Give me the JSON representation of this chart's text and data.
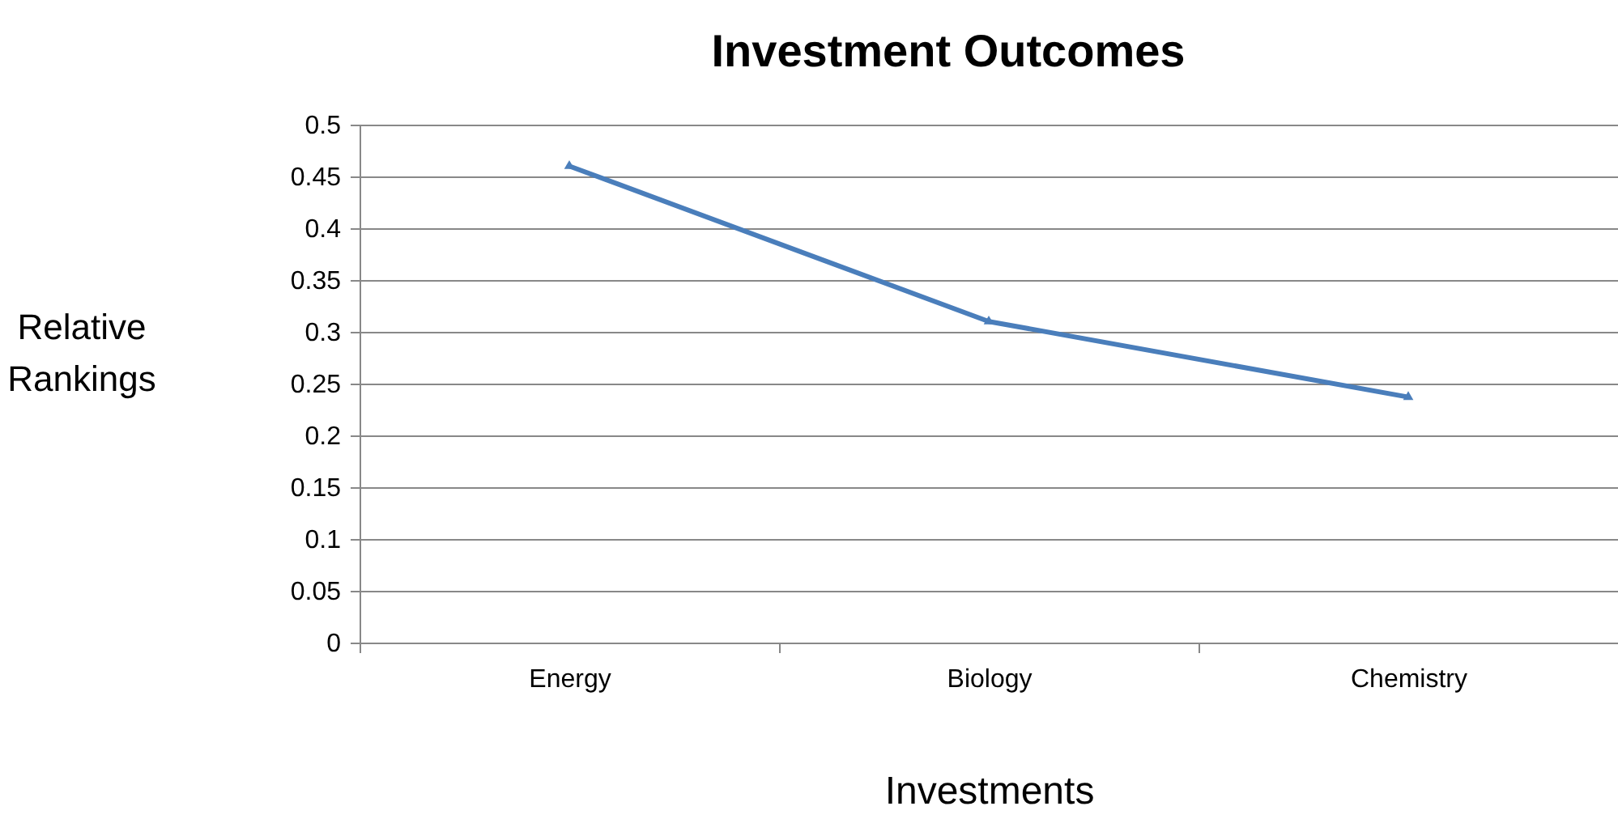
{
  "chart_data": {
    "type": "line",
    "title": "Investment Outcomes",
    "xlabel": "Investments",
    "ylabel": "Relative Rankings",
    "categories": [
      "Energy",
      "Biology",
      "Chemistry"
    ],
    "series": [
      {
        "color": "#4a7ebb",
        "values": [
          0.46,
          0.31,
          0.237
        ]
      }
    ],
    "ylim": [
      0,
      0.5
    ],
    "yticks": [
      0,
      0.05,
      0.1,
      0.15,
      0.2,
      0.25,
      0.3,
      0.35,
      0.4,
      0.45,
      0.5
    ],
    "grid": "y",
    "marker": "triangle",
    "line_style": "solid",
    "legend": false
  }
}
